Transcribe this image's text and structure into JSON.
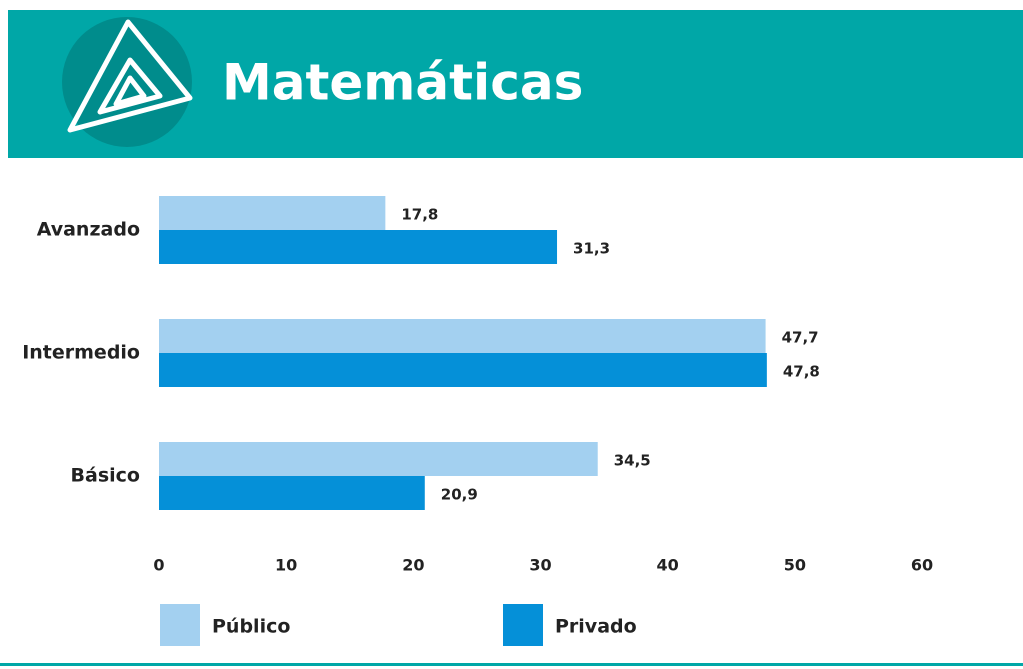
{
  "chart_data": {
    "type": "hbar",
    "title": "Matemáticas",
    "categories": [
      "Avanzado",
      "Intermedio",
      "Básico"
    ],
    "series": [
      {
        "name": "Público",
        "color": "#a3d0f0",
        "values": [
          17.8,
          47.7,
          34.5
        ],
        "value_labels": [
          "17,8",
          "47,7",
          "34,5"
        ]
      },
      {
        "name": "Privado",
        "color": "#0590d8",
        "values": [
          31.3,
          47.8,
          20.9
        ],
        "value_labels": [
          "31,3",
          "47,8",
          "20,9"
        ]
      }
    ],
    "xlim": [
      0,
      60
    ],
    "xticks": [
      0,
      10,
      20,
      30,
      40,
      50,
      60
    ],
    "grid": false,
    "legend": "bottom"
  }
}
